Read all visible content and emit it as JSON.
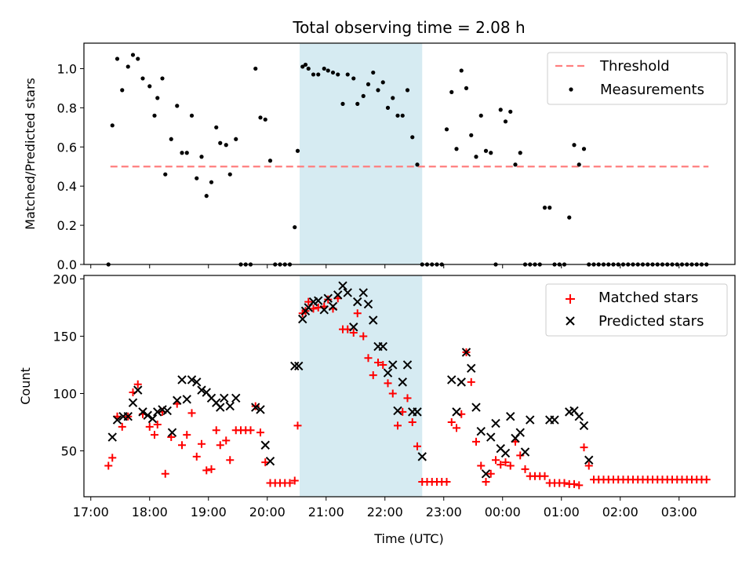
{
  "chart_data": [
    {
      "type": "scatter",
      "title": "Total observing time = 2.08 h",
      "ylabel": "Matched/Predicted stars",
      "ylim": [
        0,
        1.13
      ],
      "yticks": [
        0.0,
        0.2,
        0.4,
        0.6,
        0.8,
        1.0
      ],
      "yticklabels": [
        "0.0",
        "0.2",
        "0.4",
        "0.6",
        "0.8",
        "1.0"
      ],
      "grid": false,
      "legend_position": "top-right",
      "legend": [
        "Threshold",
        "Measurements"
      ],
      "threshold": {
        "name": "Threshold",
        "value": 0.5,
        "x_range": [
          "17:20",
          "03:30"
        ],
        "color": "#ff7f7f",
        "style": "dashed"
      },
      "highlight": {
        "x_range": [
          "20:33",
          "22:38"
        ],
        "color": "#add8e6"
      },
      "series": [
        {
          "name": "Measurements",
          "color": "#000000",
          "marker": "dot",
          "x": [
            "17:18",
            "17:22",
            "17:27",
            "17:32",
            "17:38",
            "17:43",
            "17:48",
            "17:53",
            "18:00",
            "18:05",
            "18:08",
            "18:13",
            "18:16",
            "18:22",
            "18:28",
            "18:33",
            "18:38",
            "18:43",
            "18:48",
            "18:53",
            "18:58",
            "19:03",
            "19:08",
            "19:12",
            "19:18",
            "19:22",
            "19:28",
            "19:33",
            "19:38",
            "19:43",
            "19:48",
            "19:53",
            "19:58",
            "20:03",
            "20:08",
            "20:13",
            "20:18",
            "20:23",
            "20:28",
            "20:31",
            "20:36",
            "20:39",
            "20:42",
            "20:47",
            "20:52",
            "20:58",
            "21:02",
            "21:07",
            "21:12",
            "21:17",
            "21:22",
            "21:28",
            "21:32",
            "21:38",
            "21:43",
            "21:48",
            "21:53",
            "21:58",
            "22:03",
            "22:08",
            "22:13",
            "22:18",
            "22:23",
            "22:28",
            "22:33",
            "22:38",
            "22:43",
            "22:48",
            "22:53",
            "22:58",
            "23:03",
            "23:08",
            "23:13",
            "23:18",
            "23:23",
            "23:28",
            "23:33",
            "23:38",
            "23:43",
            "23:48",
            "23:53",
            "23:58",
            "00:03",
            "00:08",
            "00:13",
            "00:18",
            "00:23",
            "00:28",
            "00:33",
            "00:38",
            "00:43",
            "00:48",
            "00:53",
            "00:58",
            "01:03",
            "01:08",
            "01:13",
            "01:18",
            "01:23",
            "01:28",
            "01:33",
            "01:38",
            "01:43",
            "01:48",
            "01:53",
            "01:58",
            "02:03",
            "02:08",
            "02:13",
            "02:18",
            "02:23",
            "02:28",
            "02:33",
            "02:38",
            "02:43",
            "02:48",
            "02:53",
            "02:58",
            "03:03",
            "03:08",
            "03:13",
            "03:18",
            "03:23",
            "03:28"
          ],
          "y": [
            0.0,
            0.71,
            1.05,
            0.89,
            1.01,
            1.07,
            1.05,
            0.95,
            0.91,
            0.76,
            0.85,
            0.95,
            0.46,
            0.64,
            0.81,
            0.57,
            0.57,
            0.76,
            0.44,
            0.55,
            0.35,
            0.42,
            0.7,
            0.62,
            0.61,
            0.46,
            0.64,
            0.0,
            0.0,
            0.0,
            1.0,
            0.75,
            0.74,
            0.53,
            0.0,
            0.0,
            0.0,
            0.0,
            0.19,
            0.58,
            1.01,
            1.02,
            1.0,
            0.97,
            0.97,
            1.0,
            0.99,
            0.98,
            0.97,
            0.82,
            0.97,
            0.95,
            0.82,
            0.86,
            0.92,
            0.98,
            0.89,
            0.93,
            0.8,
            0.85,
            0.76,
            0.76,
            0.89,
            0.65,
            0.51,
            0.0,
            0.0,
            0.0,
            0.0,
            0.0,
            0.69,
            0.88,
            0.59,
            0.99,
            0.9,
            0.66,
            0.55,
            0.76,
            0.58,
            0.57,
            0.0,
            0.79,
            0.73,
            0.78,
            0.51,
            0.57,
            0.0,
            0.0,
            0.0,
            0.0,
            0.29,
            0.29,
            0.0,
            0.0,
            0.0,
            0.24,
            0.61,
            0.51,
            0.59,
            0.0,
            0.0,
            0.0,
            0.0,
            0.0,
            0.0,
            0.0,
            0.0,
            0.0,
            0.0,
            0.0,
            0.0,
            0.0,
            0.0,
            0.0,
            0.0,
            0.0,
            0.0,
            0.0,
            0.0,
            0.0,
            0.0,
            0.0,
            0.0,
            0.0
          ]
        }
      ]
    },
    {
      "type": "scatter",
      "xlabel": "Time (UTC)",
      "ylabel": "Count",
      "ylim": [
        10,
        203
      ],
      "yticks": [
        50,
        100,
        150,
        200
      ],
      "yticklabels": [
        "50",
        "100",
        "150",
        "200"
      ],
      "xticks": [
        "17:00",
        "18:00",
        "19:00",
        "20:00",
        "21:00",
        "22:00",
        "23:00",
        "00:00",
        "01:00",
        "02:00",
        "03:00"
      ],
      "x_axis_span": [
        "16:53",
        "03:57"
      ],
      "grid": false,
      "legend_position": "top-right",
      "legend": [
        "Matched stars",
        "Predicted stars"
      ],
      "highlight": {
        "x_range": [
          "20:33",
          "22:38"
        ],
        "color": "#add8e6"
      },
      "series": [
        {
          "name": "Matched stars",
          "color": "#ff0000",
          "marker": "plus",
          "x": [
            "17:18",
            "17:22",
            "17:27",
            "17:32",
            "17:38",
            "17:43",
            "17:48",
            "17:53",
            "18:00",
            "18:05",
            "18:08",
            "18:13",
            "18:16",
            "18:22",
            "18:28",
            "18:33",
            "18:38",
            "18:43",
            "18:48",
            "18:53",
            "18:58",
            "19:03",
            "19:08",
            "19:12",
            "19:18",
            "19:22",
            "19:28",
            "19:33",
            "19:38",
            "19:43",
            "19:48",
            "19:53",
            "19:58",
            "20:03",
            "20:08",
            "20:13",
            "20:18",
            "20:23",
            "20:28",
            "20:31",
            "20:36",
            "20:39",
            "20:42",
            "20:47",
            "20:52",
            "20:58",
            "21:02",
            "21:07",
            "21:12",
            "21:17",
            "21:22",
            "21:28",
            "21:32",
            "21:38",
            "21:43",
            "21:48",
            "21:53",
            "21:58",
            "22:03",
            "22:08",
            "22:13",
            "22:18",
            "22:23",
            "22:28",
            "22:33",
            "22:38",
            "22:43",
            "22:48",
            "22:53",
            "22:58",
            "23:03",
            "23:08",
            "23:13",
            "23:18",
            "23:23",
            "23:28",
            "23:33",
            "23:38",
            "23:43",
            "23:48",
            "23:53",
            "23:58",
            "00:03",
            "00:08",
            "00:13",
            "00:18",
            "00:23",
            "00:28",
            "00:33",
            "00:38",
            "00:43",
            "00:48",
            "00:53",
            "00:58",
            "01:03",
            "01:08",
            "01:13",
            "01:18",
            "01:23",
            "01:28",
            "01:33",
            "01:38",
            "01:43",
            "01:48",
            "01:53",
            "01:58",
            "02:03",
            "02:08",
            "02:13",
            "02:18",
            "02:23",
            "02:28",
            "02:33",
            "02:38",
            "02:43",
            "02:48",
            "02:53",
            "02:58",
            "03:03",
            "03:08",
            "03:13",
            "03:18",
            "03:23",
            "03:28"
          ],
          "y": [
            37,
            44,
            80,
            71,
            80,
            101,
            108,
            82,
            71,
            64,
            73,
            84,
            30,
            62,
            91,
            55,
            64,
            83,
            45,
            56,
            33,
            34,
            68,
            55,
            59,
            42,
            68,
            68,
            68,
            68,
            89,
            66,
            40,
            22,
            22,
            22,
            22,
            22,
            24,
            72,
            170,
            172,
            180,
            174,
            175,
            176,
            182,
            174,
            183,
            156,
            156,
            153,
            170,
            150,
            131,
            116,
            127,
            125,
            109,
            100,
            72,
            84,
            96,
            75,
            54,
            23,
            23,
            23,
            23,
            23,
            23,
            75,
            70,
            82,
            136,
            110,
            58,
            37,
            23,
            30,
            42,
            38,
            40,
            37,
            58,
            46,
            34,
            28,
            28,
            28,
            28,
            22,
            22,
            22,
            22,
            21,
            21,
            20,
            53,
            37,
            25,
            25,
            25,
            25,
            25,
            25,
            25,
            25,
            25,
            25,
            25,
            25,
            25,
            25,
            25,
            25,
            25,
            25,
            25,
            25,
            25,
            25,
            25,
            25
          ]
        },
        {
          "name": "Predicted stars",
          "color": "#000000",
          "marker": "x",
          "x": [
            "17:22",
            "17:27",
            "17:33",
            "17:38",
            "17:43",
            "17:48",
            "17:53",
            "17:58",
            "18:03",
            "18:08",
            "18:13",
            "18:18",
            "18:23",
            "18:28",
            "18:33",
            "18:38",
            "18:43",
            "18:48",
            "18:53",
            "18:58",
            "19:03",
            "19:08",
            "19:12",
            "19:16",
            "19:22",
            "19:28",
            "19:48",
            "19:53",
            "19:58",
            "20:03",
            "20:28",
            "20:32",
            "20:36",
            "20:39",
            "20:42",
            "20:47",
            "20:52",
            "20:58",
            "21:02",
            "21:07",
            "21:12",
            "21:17",
            "21:22",
            "21:28",
            "21:32",
            "21:38",
            "21:43",
            "21:48",
            "21:53",
            "21:58",
            "22:03",
            "22:08",
            "22:13",
            "22:18",
            "22:23",
            "22:28",
            "22:33",
            "22:38",
            "23:08",
            "23:13",
            "23:18",
            "23:23",
            "23:28",
            "23:33",
            "23:38",
            "23:43",
            "23:48",
            "23:53",
            "23:58",
            "00:03",
            "00:08",
            "00:13",
            "00:18",
            "00:23",
            "00:28",
            "00:48",
            "00:53",
            "01:08",
            "01:13",
            "01:18",
            "01:23",
            "01:28"
          ],
          "y": [
            62,
            77,
            80,
            80,
            92,
            103,
            84,
            81,
            78,
            84,
            86,
            85,
            66,
            94,
            112,
            95,
            112,
            110,
            103,
            101,
            96,
            92,
            88,
            96,
            89,
            96,
            88,
            86,
            55,
            41,
            124,
            124,
            165,
            172,
            175,
            180,
            181,
            173,
            183,
            176,
            186,
            194,
            188,
            158,
            180,
            188,
            178,
            164,
            141,
            141,
            118,
            125,
            85,
            110,
            125,
            84,
            84,
            45,
            112,
            84,
            110,
            136,
            122,
            88,
            67,
            30,
            62,
            74,
            52,
            48,
            80,
            61,
            66,
            49,
            77,
            77,
            77,
            84,
            85,
            80,
            72,
            42
          ]
        }
      ]
    }
  ]
}
